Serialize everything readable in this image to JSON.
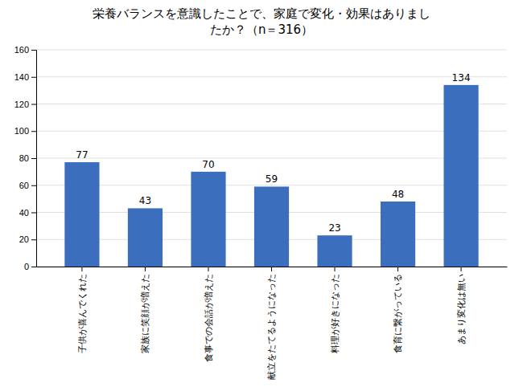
{
  "chart_data": {
    "type": "bar",
    "title": "栄養バランスを意識したことで、家庭で変化・効果はありまし\nたか？（n＝316）",
    "categories": [
      "子供が喜んでくれた",
      "家族に笑顔が増えた",
      "食事での会話が増えた",
      "献立をたてるようになった",
      "料理が好きになった",
      "食育に繋がっている",
      "あまり変化は無い"
    ],
    "values": [
      77,
      43,
      70,
      59,
      23,
      48,
      134
    ],
    "color": "#3C6EBE",
    "ylim": [
      0,
      160
    ],
    "yticks": [
      0,
      20,
      40,
      60,
      80,
      100,
      120,
      140,
      160
    ],
    "grid": true,
    "data_labels": true
  }
}
